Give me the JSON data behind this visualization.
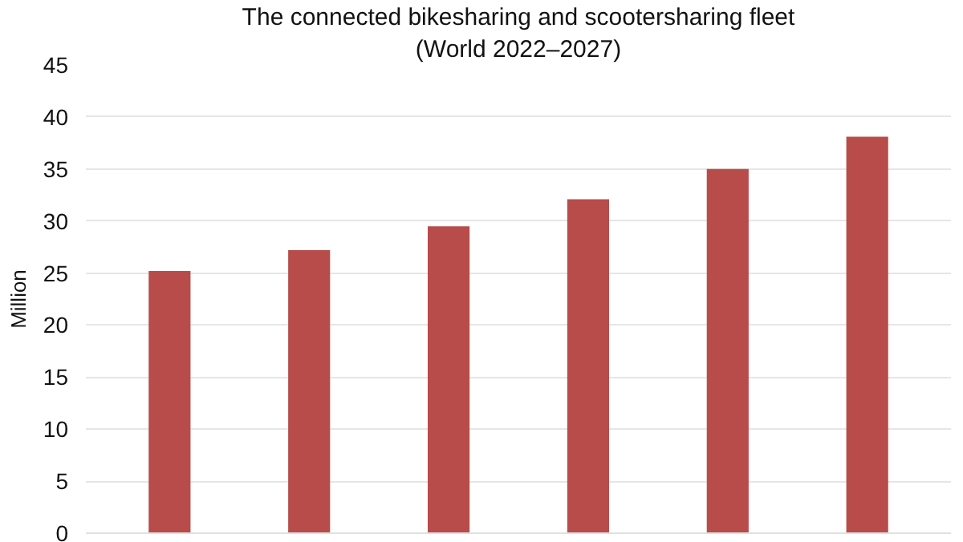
{
  "chart_data": {
    "type": "bar",
    "title": "The connected bikesharing and scootersharing fleet",
    "subtitle": "(World 2022–2027)",
    "ylabel": "Million",
    "categories": [
      null,
      null,
      null,
      null,
      null,
      null
    ],
    "values": [
      25.2,
      27.2,
      29.5,
      32.1,
      35.0,
      38.1
    ],
    "color": "#b84c4a",
    "ylim": [
      0,
      45
    ],
    "yticks": [
      0,
      5,
      10,
      15,
      20,
      25,
      30,
      35,
      40,
      45
    ],
    "grid": "y"
  }
}
